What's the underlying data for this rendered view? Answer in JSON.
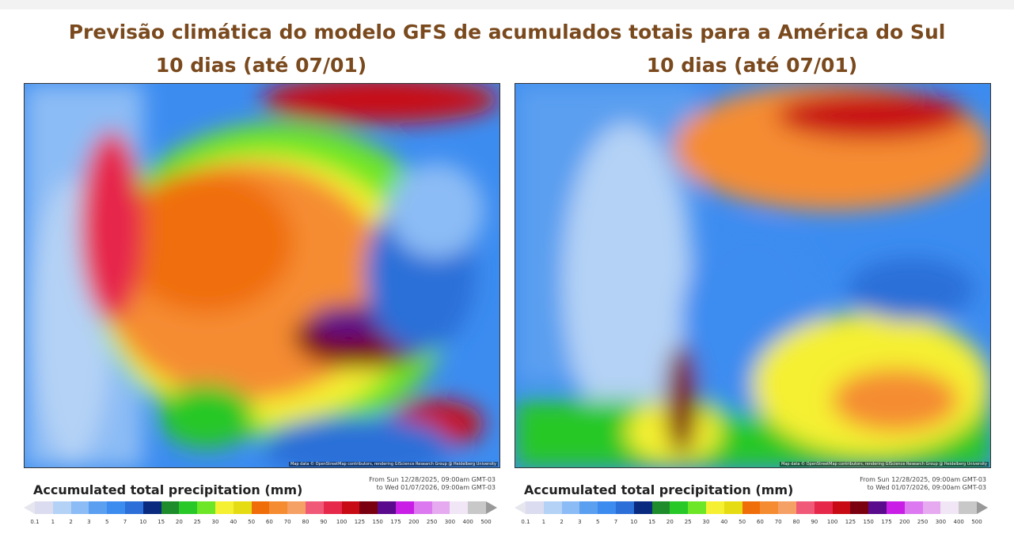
{
  "title": "Previsão climática do modelo GFS de acumulados totais para a América do Sul",
  "panels": [
    {
      "subtitle": "10 dias (até 07/01)",
      "credit": "Map data © OpenStreetMap contributors, rendering GIScience Research Group @ Heidelberg University",
      "legend_title": "Accumulated total precipitation (mm)",
      "date_from": "From Sun 12/28/2025, 09:00am GMT-03",
      "date_to": "to Wed 01/07/2026, 09:00am GMT-03"
    },
    {
      "subtitle": "10 dias (até 07/01)",
      "credit": "Map data © OpenStreetMap contributors, rendering GIScience Research Group @ Heidelberg University",
      "legend_title": "Accumulated total precipitation (mm)",
      "date_from": "From Sun 12/28/2025, 09:00am GMT-03",
      "date_to": "to Wed 01/07/2026, 09:00am GMT-03"
    }
  ],
  "legend": {
    "ticks": [
      "0.1",
      "1",
      "2",
      "3",
      "5",
      "7",
      "10",
      "15",
      "20",
      "25",
      "30",
      "40",
      "50",
      "60",
      "70",
      "80",
      "90",
      "100",
      "125",
      "150",
      "175",
      "200",
      "250",
      "300",
      "400",
      "500"
    ],
    "colors": [
      "#dcdcf0",
      "#b4d2f5",
      "#8cbcf5",
      "#5a9ff0",
      "#3c8cf0",
      "#2c6fd8",
      "#0a2a80",
      "#1e8c2a",
      "#28c828",
      "#6ee628",
      "#f5f032",
      "#e6dc14",
      "#f06e0a",
      "#f58c32",
      "#f5a064",
      "#f05a78",
      "#e6284b",
      "#c80a14",
      "#7a0010",
      "#5a0a8c",
      "#c81ee6",
      "#dc78f0",
      "#e6aaf0",
      "#f0e6f5",
      "#c8c8c8"
    ]
  }
}
